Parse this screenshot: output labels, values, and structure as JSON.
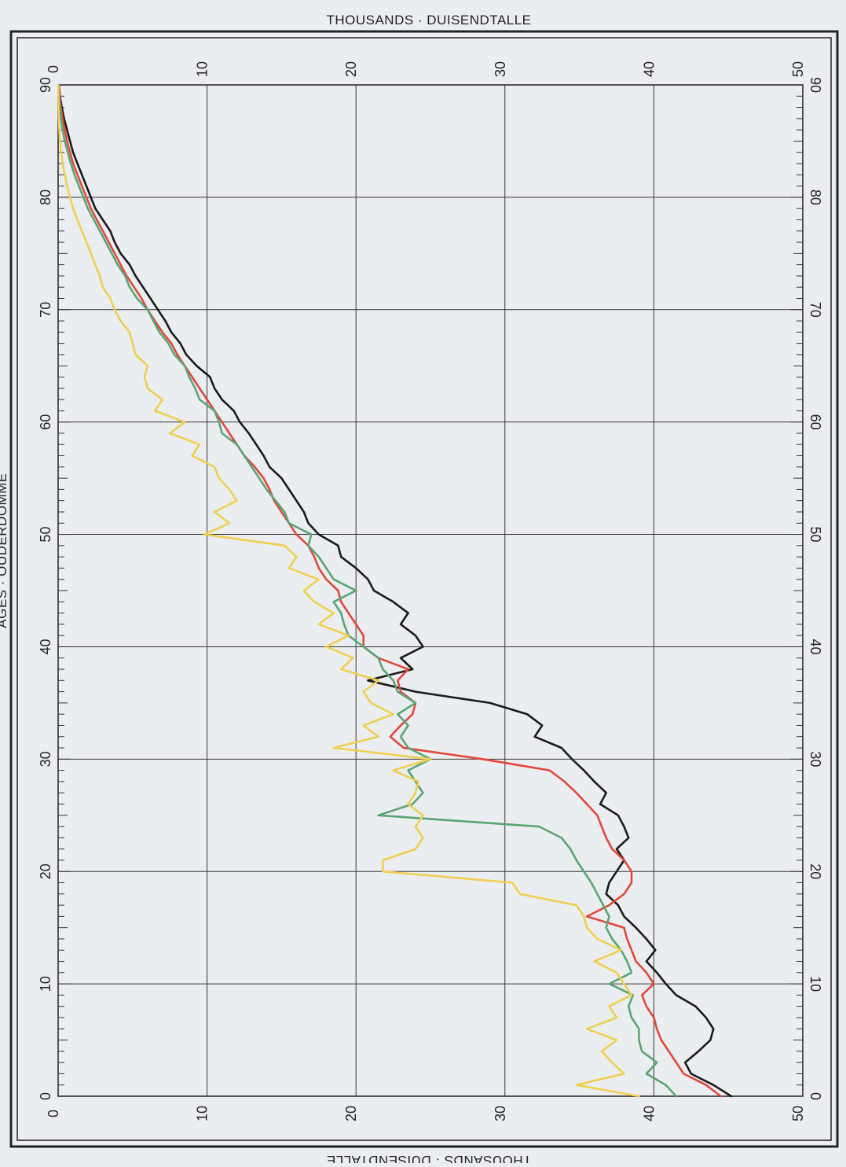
{
  "page": {
    "top_title": "THOUSANDS · DUISENDTALLE",
    "bottom_title": "THOUSANDS · DUISENDTALLE",
    "side_title": "AGES · OUDERDOMME"
  },
  "chart_data": {
    "type": "line",
    "orientation": "rotated-90",
    "x_axis": {
      "quantity": "age",
      "range": [
        0,
        90
      ],
      "major_ticks": [
        0,
        10,
        20,
        30,
        40,
        50,
        60,
        70,
        80,
        90
      ],
      "minor_tick_step": 1
    },
    "y_axis": {
      "quantity": "thousands",
      "range": [
        0,
        50
      ],
      "major_ticks": [
        0,
        10,
        20,
        30,
        40,
        50
      ],
      "bottom_tick_labels": [
        "0",
        "10",
        "20",
        "30",
        "40",
        "50"
      ],
      "top_tick_labels": [
        "0",
        "10",
        "20",
        "30",
        "40",
        "50"
      ]
    },
    "grid": true,
    "series": [
      {
        "color": "#1a1a1a",
        "x": [
          0,
          1,
          2,
          3,
          4,
          5,
          6,
          7,
          8,
          9,
          10,
          11,
          12,
          13,
          14,
          15,
          16,
          17,
          18,
          19,
          20,
          21,
          22,
          23,
          24,
          25,
          26,
          27,
          28,
          29,
          30,
          31,
          32,
          33,
          34,
          35,
          36,
          37,
          38,
          39,
          40,
          41,
          42,
          43,
          44,
          45,
          46,
          47,
          48,
          49,
          50,
          51,
          52,
          53,
          54,
          55,
          56,
          57,
          58,
          59,
          60,
          61,
          62,
          63,
          64,
          65,
          66,
          67,
          68,
          69,
          70,
          71,
          72,
          73,
          74,
          75,
          76,
          77,
          78,
          79,
          80,
          81,
          82,
          83,
          84,
          85,
          86,
          87,
          88,
          89,
          90
        ],
        "y": [
          45.2,
          44.0,
          42.5,
          42.1,
          43.0,
          43.8,
          44.0,
          43.5,
          42.8,
          41.5,
          40.8,
          40.2,
          39.5,
          40.1,
          39.5,
          38.8,
          38.0,
          37.6,
          36.8,
          37.0,
          37.5,
          38.0,
          37.5,
          38.3,
          38.0,
          37.6,
          36.4,
          36.8,
          36.0,
          35.3,
          34.5,
          33.8,
          32.0,
          32.5,
          31.5,
          29.0,
          24.0,
          20.8,
          23.8,
          23.0,
          24.5,
          24.0,
          23.0,
          23.5,
          22.5,
          21.2,
          20.8,
          20.0,
          19.0,
          18.8,
          17.5,
          16.8,
          16.5,
          16.0,
          15.5,
          15.0,
          14.2,
          13.8,
          13.3,
          12.8,
          12.2,
          11.8,
          11.0,
          10.5,
          10.2,
          9.3,
          8.6,
          8.2,
          7.6,
          7.2,
          6.7,
          6.2,
          5.7,
          5.2,
          4.8,
          4.2,
          3.8,
          3.5,
          3.0,
          2.5,
          2.2,
          1.9,
          1.6,
          1.3,
          1.0,
          0.8,
          0.6,
          0.4,
          0.25,
          0.12,
          0.05
        ]
      },
      {
        "color": "#e0483a",
        "x": [
          0,
          1,
          2,
          3,
          4,
          5,
          6,
          7,
          8,
          9,
          10,
          11,
          12,
          13,
          14,
          15,
          16,
          17,
          18,
          19,
          20,
          21,
          22,
          23,
          24,
          25,
          26,
          27,
          28,
          29,
          30,
          31,
          32,
          33,
          34,
          35,
          36,
          37,
          38,
          39,
          40,
          41,
          42,
          43,
          44,
          45,
          46,
          47,
          48,
          49,
          50,
          51,
          52,
          53,
          54,
          55,
          56,
          57,
          58,
          59,
          60,
          61,
          62,
          63,
          64,
          65,
          66,
          67,
          68,
          69,
          70,
          71,
          72,
          73,
          74,
          75,
          76,
          77,
          78,
          79,
          80,
          81,
          82,
          83,
          84,
          85,
          86,
          87,
          88,
          89,
          90
        ],
        "y": [
          44.5,
          43.5,
          42.0,
          41.5,
          41.0,
          40.5,
          40.2,
          40.0,
          39.5,
          39.2,
          40.0,
          39.5,
          38.8,
          38.5,
          38.2,
          38.0,
          35.5,
          37.0,
          38.0,
          38.5,
          38.5,
          38.0,
          37.2,
          36.8,
          36.5,
          36.2,
          35.5,
          34.8,
          34.0,
          33.0,
          28.5,
          23.2,
          22.3,
          23.0,
          23.8,
          24.0,
          23.0,
          22.8,
          23.5,
          21.5,
          20.5,
          20.5,
          20.0,
          19.5,
          19.0,
          18.8,
          18.0,
          17.5,
          17.2,
          16.8,
          16.0,
          15.5,
          15.0,
          14.5,
          14.2,
          13.8,
          13.2,
          12.5,
          12.0,
          11.5,
          11.0,
          10.5,
          10.0,
          9.5,
          9.0,
          8.5,
          8.0,
          7.6,
          7.0,
          6.5,
          6.0,
          5.6,
          5.1,
          4.6,
          4.2,
          3.8,
          3.4,
          3.0,
          2.6,
          2.2,
          1.9,
          1.6,
          1.3,
          1.0,
          0.8,
          0.6,
          0.45,
          0.3,
          0.18,
          0.1,
          0.04
        ]
      },
      {
        "color": "#5aa475",
        "x": [
          0,
          1,
          2,
          3,
          4,
          5,
          6,
          7,
          8,
          9,
          10,
          11,
          12,
          13,
          14,
          15,
          16,
          17,
          18,
          19,
          20,
          21,
          22,
          23,
          24,
          25,
          26,
          27,
          28,
          29,
          30,
          31,
          32,
          33,
          34,
          35,
          36,
          37,
          38,
          39,
          40,
          41,
          42,
          43,
          44,
          45,
          46,
          47,
          48,
          49,
          50,
          51,
          52,
          53,
          54,
          55,
          56,
          57,
          58,
          59,
          60,
          61,
          62,
          63,
          64,
          65,
          66,
          67,
          68,
          69,
          70,
          71,
          72,
          73,
          74,
          75,
          76,
          77,
          78,
          79,
          80,
          81,
          82,
          83,
          84,
          85,
          86,
          87,
          88,
          89,
          90
        ],
        "y": [
          41.5,
          40.8,
          39.5,
          40.2,
          39.2,
          39.0,
          39.0,
          38.5,
          38.3,
          38.6,
          37.0,
          38.5,
          38.2,
          37.8,
          37.2,
          36.8,
          37.0,
          36.6,
          36.2,
          35.8,
          35.3,
          34.8,
          34.4,
          33.8,
          32.3,
          21.5,
          23.8,
          24.5,
          24.0,
          23.5,
          25.0,
          23.5,
          23.0,
          23.5,
          22.8,
          24.0,
          22.8,
          22.5,
          21.8,
          21.5,
          20.5,
          19.5,
          19.2,
          19.0,
          18.5,
          20.0,
          18.5,
          18.0,
          17.5,
          16.8,
          17.0,
          15.5,
          15.2,
          14.6,
          14.0,
          13.5,
          13.0,
          12.5,
          12.0,
          11.0,
          10.8,
          10.5,
          9.5,
          9.2,
          8.8,
          8.5,
          7.8,
          7.4,
          6.8,
          6.4,
          6.0,
          5.3,
          4.8,
          4.5,
          4.0,
          3.6,
          3.2,
          2.8,
          2.4,
          2.0,
          1.7,
          1.4,
          1.1,
          0.85,
          0.65,
          0.45,
          0.3,
          0.2,
          0.12,
          0.06,
          0.02
        ]
      },
      {
        "color": "#f0cf52",
        "x": [
          0,
          1,
          2,
          3,
          4,
          5,
          6,
          7,
          8,
          9,
          10,
          11,
          12,
          13,
          14,
          15,
          16,
          17,
          18,
          19,
          20,
          21,
          22,
          23,
          24,
          25,
          26,
          27,
          28,
          29,
          30,
          31,
          32,
          33,
          34,
          35,
          36,
          37,
          38,
          39,
          40,
          41,
          42,
          43,
          44,
          45,
          46,
          47,
          48,
          49,
          50,
          51,
          52,
          53,
          54,
          55,
          56,
          57,
          58,
          59,
          60,
          61,
          62,
          63,
          64,
          65,
          66,
          67,
          68,
          69,
          70,
          71,
          72,
          73,
          74,
          75,
          76,
          77,
          78,
          79,
          80,
          81,
          82,
          83,
          84,
          85,
          86,
          87,
          88,
          89,
          90
        ],
        "y": [
          39.0,
          34.8,
          38.0,
          37.2,
          36.5,
          37.5,
          35.5,
          37.5,
          37.0,
          38.5,
          38.0,
          37.5,
          36.0,
          37.8,
          36.2,
          35.5,
          35.3,
          34.8,
          31.0,
          30.5,
          21.8,
          21.8,
          24.0,
          24.5,
          24.0,
          24.5,
          23.5,
          24.0,
          24.2,
          22.5,
          25.0,
          18.5,
          21.5,
          20.5,
          22.5,
          21.0,
          20.5,
          21.5,
          19.0,
          19.8,
          18.0,
          19.5,
          17.5,
          18.5,
          17.2,
          16.5,
          17.5,
          15.5,
          16.0,
          15.2,
          9.8,
          11.5,
          10.5,
          12.0,
          11.5,
          10.8,
          10.5,
          9.0,
          9.5,
          7.5,
          8.5,
          6.5,
          7.0,
          6.0,
          5.8,
          6.0,
          5.2,
          5.0,
          4.8,
          4.2,
          3.8,
          3.5,
          3.0,
          2.8,
          2.5,
          2.2,
          1.9,
          1.6,
          1.3,
          1.0,
          0.8,
          0.6,
          0.45,
          0.3,
          0.2,
          0.12,
          0.08,
          0.05,
          0.03,
          0.02,
          0.01
        ]
      }
    ]
  }
}
